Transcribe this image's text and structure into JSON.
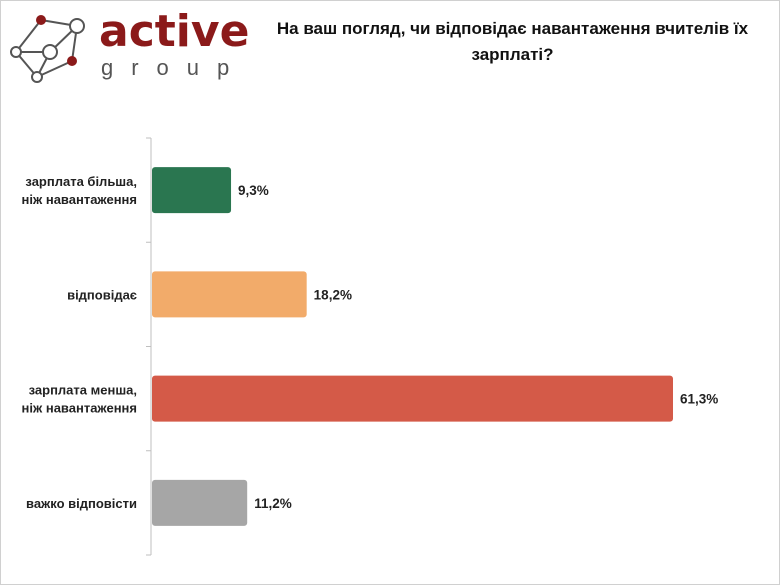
{
  "logo": {
    "name": "active",
    "sub": "group"
  },
  "chart_data": {
    "type": "bar",
    "orientation": "horizontal",
    "title": "На ваш погляд, чи відповідає навантаження вчителів їх зарплаті?",
    "categories": [
      [
        "зарплата більша,",
        "ніж навантаження"
      ],
      [
        "відповідає"
      ],
      [
        "зарплата менша,",
        "ніж навантаження"
      ],
      [
        "важко відповісти"
      ]
    ],
    "values": [
      9.3,
      18.2,
      61.3,
      11.2
    ],
    "value_labels": [
      "9,3%",
      "18,2%",
      "61,3%",
      "11,2%"
    ],
    "colors": [
      "#2a7650",
      "#f2ab6a",
      "#d45a48",
      "#a6a6a6"
    ],
    "xlim": [
      0,
      70
    ],
    "grid": false
  }
}
